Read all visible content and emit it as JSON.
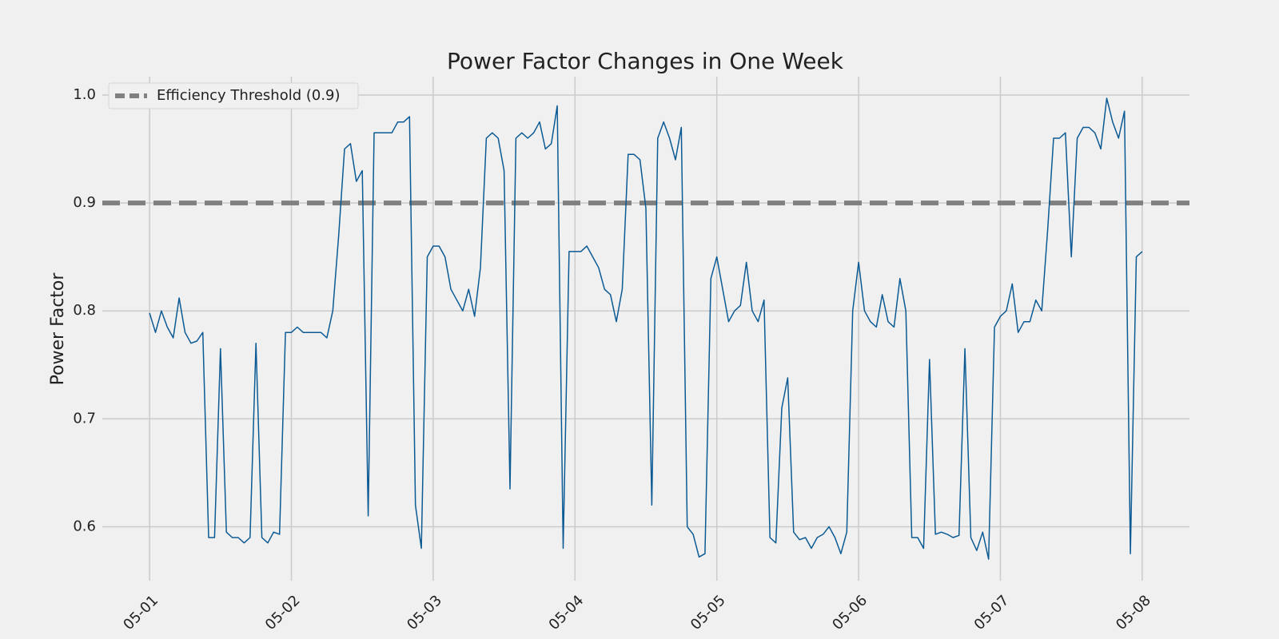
{
  "chart_data": {
    "type": "line",
    "title": "Power Factor Changes in One Week",
    "y_label": "Power Factor",
    "categories": [
      "05-01",
      null,
      null,
      null,
      null,
      null,
      null,
      null,
      null,
      null,
      null,
      null,
      null,
      null,
      null,
      null,
      null,
      null,
      null,
      null,
      null,
      null,
      null,
      null,
      "05-02",
      null,
      null,
      null,
      null,
      null,
      null,
      null,
      null,
      null,
      null,
      null,
      null,
      null,
      null,
      null,
      null,
      null,
      null,
      null,
      null,
      null,
      null,
      null,
      "05-03",
      null,
      null,
      null,
      null,
      null,
      null,
      null,
      null,
      null,
      null,
      null,
      null,
      null,
      null,
      null,
      null,
      null,
      null,
      null,
      null,
      null,
      null,
      null,
      "05-04",
      null,
      null,
      null,
      null,
      null,
      null,
      null,
      null,
      null,
      null,
      null,
      null,
      null,
      null,
      null,
      null,
      null,
      null,
      null,
      null,
      null,
      null,
      null,
      "05-05",
      null,
      null,
      null,
      null,
      null,
      null,
      null,
      null,
      null,
      null,
      null,
      null,
      null,
      null,
      null,
      null,
      null,
      null,
      null,
      null,
      null,
      null,
      null,
      "05-06",
      null,
      null,
      null,
      null,
      null,
      null,
      null,
      null,
      null,
      null,
      null,
      null,
      null,
      null,
      null,
      null,
      null,
      null,
      null,
      null,
      null,
      null,
      null,
      "05-07",
      null,
      null,
      null,
      null,
      null,
      null,
      null,
      null,
      null,
      null,
      null,
      null,
      null,
      null,
      null,
      null,
      null,
      null,
      null,
      null,
      null,
      null,
      null,
      "05-08"
    ],
    "series": [
      {
        "color": "#0b5a94",
        "values": [
          0.798,
          0.78,
          0.8,
          0.785,
          0.775,
          0.812,
          0.78,
          0.77,
          0.772,
          0.78,
          0.59,
          0.59,
          0.765,
          0.595,
          0.59,
          0.59,
          0.585,
          0.59,
          0.77,
          0.59,
          0.585,
          0.595,
          0.593,
          0.78,
          0.78,
          0.785,
          0.78,
          0.78,
          0.78,
          0.78,
          0.775,
          0.8,
          0.87,
          0.95,
          0.955,
          0.92,
          0.93,
          0.61,
          0.965,
          0.965,
          0.965,
          0.965,
          0.975,
          0.975,
          0.98,
          0.62,
          0.58,
          0.85,
          0.86,
          0.86,
          0.85,
          0.82,
          0.81,
          0.8,
          0.82,
          0.795,
          0.84,
          0.96,
          0.965,
          0.96,
          0.93,
          0.635,
          0.96,
          0.965,
          0.96,
          0.965,
          0.975,
          0.95,
          0.955,
          0.99,
          0.58,
          0.855,
          0.855,
          0.855,
          0.86,
          0.85,
          0.84,
          0.82,
          0.815,
          0.79,
          0.82,
          0.945,
          0.945,
          0.94,
          0.895,
          0.62,
          0.96,
          0.975,
          0.96,
          0.94,
          0.97,
          0.6,
          0.593,
          0.572,
          0.575,
          0.83,
          0.85,
          0.82,
          0.79,
          0.8,
          0.805,
          0.845,
          0.8,
          0.79,
          0.81,
          0.59,
          0.585,
          0.71,
          0.738,
          0.595,
          0.588,
          0.59,
          0.58,
          0.59,
          0.593,
          0.6,
          0.59,
          0.575,
          0.595,
          0.8,
          0.845,
          0.8,
          0.79,
          0.785,
          0.815,
          0.79,
          0.785,
          0.83,
          0.8,
          0.59,
          0.59,
          0.58,
          0.755,
          0.593,
          0.595,
          0.593,
          0.59,
          0.592,
          0.765,
          0.59,
          0.578,
          0.595,
          0.57,
          0.785,
          0.795,
          0.8,
          0.825,
          0.78,
          0.79,
          0.79,
          0.81,
          0.8,
          0.875,
          0.96,
          0.96,
          0.965,
          0.85,
          0.96,
          0.97,
          0.97,
          0.965,
          0.95,
          0.997,
          0.975,
          0.96,
          0.985,
          0.575,
          0.85,
          0.855
        ]
      }
    ],
    "threshold": {
      "value": 0.9,
      "label": "Efficiency Threshold (0.9)",
      "color": "#808080"
    },
    "ylim": [
      0.55,
      1.017
    ],
    "yticks": [
      0.6,
      0.7,
      0.8,
      0.9,
      {
        "value": 1,
        "label": "1.0"
      }
    ],
    "grid": true,
    "legend": "upper left"
  }
}
